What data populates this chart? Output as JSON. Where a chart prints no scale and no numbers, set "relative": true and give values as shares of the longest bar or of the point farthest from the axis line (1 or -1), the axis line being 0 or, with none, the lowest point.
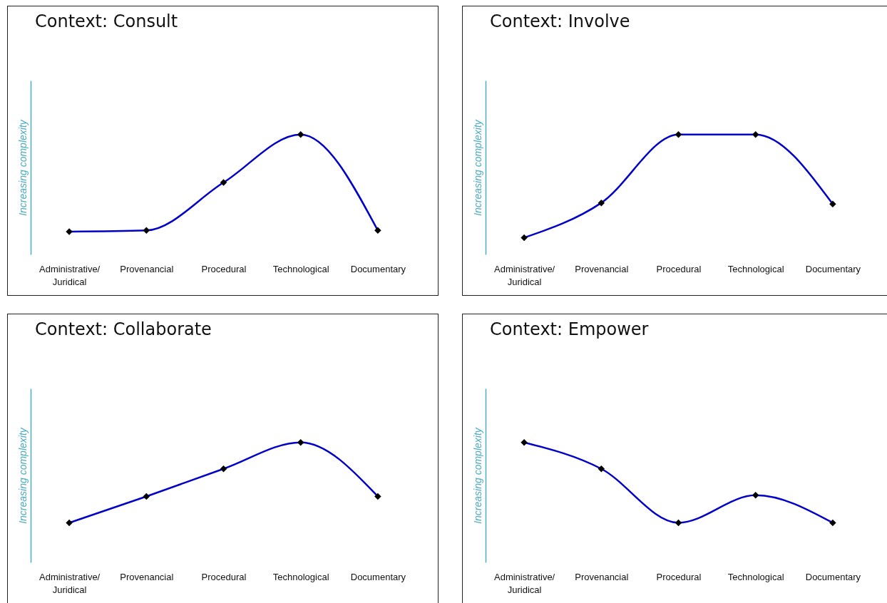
{
  "chart_data": [
    {
      "type": "line",
      "title": "Context: Consult",
      "ylabel": "Increasing complexity",
      "relative": true,
      "marker": "diamond",
      "line_style": "solid",
      "categories": [
        "Administrative/\nJuridical",
        "Provenancial",
        "Procedural",
        "Technological",
        "Documentary"
      ],
      "series": [
        {
          "color": "#0000c8",
          "values": [
            0.19,
            0.2,
            0.6,
            1,
            0.2
          ]
        }
      ]
    },
    {
      "type": "line",
      "title": "Context: Involve",
      "ylabel": "Increasing complexity",
      "relative": true,
      "marker": "diamond",
      "line_style": "solid",
      "categories": [
        "Administrative/\nJuridical",
        "Provenancial",
        "Procedural",
        "Technological",
        "Documentary"
      ],
      "series": [
        {
          "color": "#0000c8",
          "values": [
            0.14,
            0.43,
            1,
            1,
            0.42
          ]
        }
      ]
    },
    {
      "type": "line",
      "title": "Context: Collaborate",
      "ylabel": "Increasing complexity",
      "relative": true,
      "marker": "diamond",
      "line_style": "solid",
      "categories": [
        "Administrative/\nJuridical",
        "Provenancial",
        "Procedural",
        "Technological",
        "Documentary"
      ],
      "series": [
        {
          "color": "#0000c8",
          "values": [
            0.33,
            0.55,
            0.78,
            1,
            0.55
          ]
        }
      ]
    },
    {
      "type": "line",
      "title": "Context:  Empower",
      "ylabel": "Increasing complexity",
      "relative": true,
      "marker": "diamond",
      "line_style": "solid",
      "categories": [
        "Administrative/\nJuridical",
        "Provenancial",
        "Procedural",
        "Technological",
        "Documentary"
      ],
      "series": [
        {
          "color": "#0000c8",
          "values": [
            1,
            0.78,
            0.33,
            0.56,
            0.33
          ]
        }
      ]
    }
  ]
}
